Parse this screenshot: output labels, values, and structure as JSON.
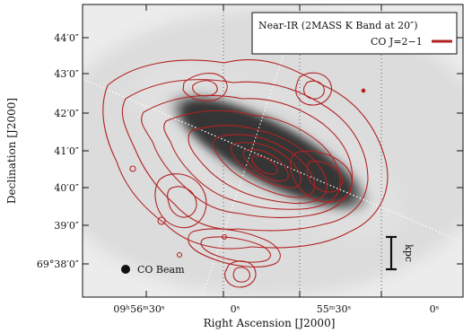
{
  "figure": {
    "ylabel": "Declination [J2000]",
    "xlabel": "Right Ascension [J2000]",
    "y_ticks": [
      "44′0″",
      "43′0″",
      "42′0″",
      "41′0″",
      "40′0″",
      "39′0″",
      "69°38′0″"
    ],
    "x_ticks": [
      "09ʰ56ᵐ30ˢ",
      "0ˢ",
      "55ᵐ30ˢ",
      "0ˢ"
    ],
    "legend": {
      "nir_label": "Near-IR (2MASS K Band at 20″)",
      "co_label": "CO J=2−1",
      "co_color": "#b22222"
    },
    "beam_label": "CO Beam",
    "scale_label": "kpc",
    "contour_color": "#b22222"
  }
}
